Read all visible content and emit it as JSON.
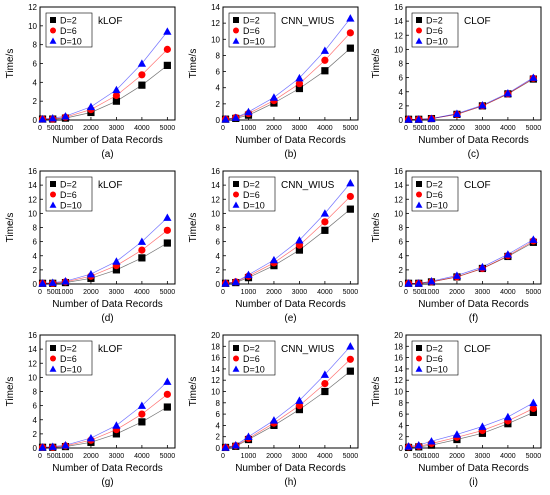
{
  "chart_data": [
    {
      "panel_label": "(a)",
      "type": "scatter",
      "title": "kLOF",
      "xlabel": "Number of Data Records",
      "ylabel": "Time/s",
      "xlim": [
        0,
        5300
      ],
      "ylim": [
        0,
        12
      ],
      "xticks": [
        0,
        500,
        1000,
        2000,
        3000,
        4000,
        5000
      ],
      "yticks": [
        0,
        2,
        4,
        6,
        8,
        10,
        12
      ],
      "x": [
        100,
        500,
        1000,
        2000,
        3000,
        4000,
        5000
      ],
      "legend_position": "top-left",
      "series": [
        {
          "name": "D=2",
          "color": "#000000",
          "marker": "square",
          "values": [
            0.1,
            0.1,
            0.2,
            0.8,
            2.0,
            3.7,
            5.8
          ]
        },
        {
          "name": "D=6",
          "color": "#ff0000",
          "marker": "circle",
          "values": [
            0.1,
            0.1,
            0.3,
            1.1,
            2.6,
            4.8,
            7.5
          ]
        },
        {
          "name": "D=10",
          "color": "#0000ff",
          "marker": "triangle",
          "values": [
            0.1,
            0.2,
            0.4,
            1.4,
            3.2,
            6.0,
            9.4
          ]
        }
      ]
    },
    {
      "panel_label": "(b)",
      "type": "scatter",
      "title": "CNN_WIUS",
      "xlabel": "Number of Data Records",
      "ylabel": "Time/s",
      "xlim": [
        0,
        5300
      ],
      "ylim": [
        0,
        14
      ],
      "xticks": [
        0,
        1000,
        2000,
        3000,
        4000,
        5000
      ],
      "yticks": [
        0,
        2,
        4,
        6,
        8,
        10,
        12,
        14
      ],
      "x": [
        100,
        500,
        1000,
        2000,
        3000,
        4000,
        5000
      ],
      "legend_position": "top-left",
      "series": [
        {
          "name": "D=2",
          "color": "#000000",
          "marker": "square",
          "values": [
            0.1,
            0.2,
            0.6,
            2.1,
            3.9,
            6.1,
            8.9
          ]
        },
        {
          "name": "D=6",
          "color": "#ff0000",
          "marker": "circle",
          "values": [
            0.1,
            0.3,
            0.8,
            2.4,
            4.5,
            7.4,
            10.8
          ]
        },
        {
          "name": "D=10",
          "color": "#0000ff",
          "marker": "triangle",
          "values": [
            0.1,
            0.3,
            1.0,
            2.8,
            5.2,
            8.6,
            12.6
          ]
        }
      ]
    },
    {
      "panel_label": "(c)",
      "type": "scatter",
      "title": "CLOF",
      "xlabel": "Number of Data Records",
      "ylabel": "Time/s",
      "xlim": [
        0,
        5300
      ],
      "ylim": [
        0,
        16
      ],
      "xticks": [
        0,
        500,
        1000,
        2000,
        3000,
        4000,
        5000
      ],
      "yticks": [
        0,
        2,
        4,
        6,
        8,
        10,
        12,
        14,
        16
      ],
      "x": [
        100,
        500,
        1000,
        2000,
        3000,
        4000,
        5000
      ],
      "legend_position": "top-left",
      "series": [
        {
          "name": "D=2",
          "color": "#000000",
          "marker": "square",
          "values": [
            0.1,
            0.1,
            0.2,
            0.8,
            2.0,
            3.7,
            5.8
          ]
        },
        {
          "name": "D=6",
          "color": "#ff0000",
          "marker": "circle",
          "values": [
            0.1,
            0.1,
            0.2,
            0.8,
            2.0,
            3.7,
            5.9
          ]
        },
        {
          "name": "D=10",
          "color": "#0000ff",
          "marker": "triangle",
          "values": [
            0.1,
            0.1,
            0.2,
            0.9,
            2.1,
            3.8,
            6.0
          ]
        }
      ]
    },
    {
      "panel_label": "(d)",
      "type": "scatter",
      "title": "kLOF",
      "xlabel": "Number of Data Records",
      "ylabel": "Time/s",
      "xlim": [
        0,
        5300
      ],
      "ylim": [
        0,
        16
      ],
      "xticks": [
        0,
        500,
        1000,
        2000,
        3000,
        4000,
        5000
      ],
      "yticks": [
        0,
        2,
        4,
        6,
        8,
        10,
        12,
        14,
        16
      ],
      "x": [
        100,
        500,
        1000,
        2000,
        3000,
        4000,
        5000
      ],
      "legend_position": "top-left",
      "series": [
        {
          "name": "D=2",
          "color": "#000000",
          "marker": "square",
          "values": [
            0.1,
            0.1,
            0.2,
            0.8,
            2.0,
            3.7,
            5.8
          ]
        },
        {
          "name": "D=6",
          "color": "#ff0000",
          "marker": "circle",
          "values": [
            0.1,
            0.1,
            0.3,
            1.1,
            2.6,
            4.8,
            7.6
          ]
        },
        {
          "name": "D=10",
          "color": "#0000ff",
          "marker": "triangle",
          "values": [
            0.1,
            0.2,
            0.4,
            1.4,
            3.2,
            6.0,
            9.4
          ]
        }
      ]
    },
    {
      "panel_label": "(e)",
      "type": "scatter",
      "title": "CNN_WIUS",
      "xlabel": "Number of Data Records",
      "ylabel": "Time/s",
      "xlim": [
        0,
        5300
      ],
      "ylim": [
        0,
        16
      ],
      "xticks": [
        0,
        1000,
        2000,
        3000,
        4000,
        5000
      ],
      "yticks": [
        0,
        2,
        4,
        6,
        8,
        10,
        12,
        14,
        16
      ],
      "x": [
        100,
        500,
        1000,
        2000,
        3000,
        4000,
        5000
      ],
      "legend_position": "top-left",
      "series": [
        {
          "name": "D=2",
          "color": "#000000",
          "marker": "square",
          "values": [
            0.1,
            0.2,
            0.9,
            2.6,
            4.8,
            7.6,
            10.6
          ]
        },
        {
          "name": "D=6",
          "color": "#ff0000",
          "marker": "circle",
          "values": [
            0.1,
            0.3,
            1.1,
            3.0,
            5.5,
            8.8,
            12.4
          ]
        },
        {
          "name": "D=10",
          "color": "#0000ff",
          "marker": "triangle",
          "values": [
            0.1,
            0.3,
            1.3,
            3.4,
            6.2,
            10.0,
            14.3
          ]
        }
      ]
    },
    {
      "panel_label": "(f)",
      "type": "scatter",
      "title": "CLOF",
      "xlabel": "Number of Data Records",
      "ylabel": "Time/s",
      "xlim": [
        0,
        5300
      ],
      "ylim": [
        0,
        16
      ],
      "xticks": [
        0,
        500,
        1000,
        2000,
        3000,
        4000,
        5000
      ],
      "yticks": [
        0,
        2,
        4,
        6,
        8,
        10,
        12,
        14,
        16
      ],
      "x": [
        100,
        500,
        1000,
        2000,
        3000,
        4000,
        5000
      ],
      "legend_position": "top-left",
      "series": [
        {
          "name": "D=2",
          "color": "#000000",
          "marker": "square",
          "values": [
            0.1,
            0.1,
            0.3,
            1.0,
            2.2,
            3.9,
            5.9
          ]
        },
        {
          "name": "D=6",
          "color": "#ff0000",
          "marker": "circle",
          "values": [
            0.1,
            0.1,
            0.3,
            1.0,
            2.2,
            4.0,
            6.1
          ]
        },
        {
          "name": "D=10",
          "color": "#0000ff",
          "marker": "triangle",
          "values": [
            0.1,
            0.1,
            0.4,
            1.2,
            2.4,
            4.2,
            6.3
          ]
        }
      ]
    },
    {
      "panel_label": "(g)",
      "type": "scatter",
      "title": "kLOF",
      "xlabel": "Number of Data Records",
      "ylabel": "Time/s",
      "xlim": [
        0,
        5300
      ],
      "ylim": [
        0,
        16
      ],
      "xticks": [
        0,
        500,
        1000,
        2000,
        3000,
        4000,
        5000
      ],
      "yticks": [
        0,
        2,
        4,
        6,
        8,
        10,
        12,
        14,
        16
      ],
      "x": [
        100,
        500,
        1000,
        2000,
        3000,
        4000,
        5000
      ],
      "legend_position": "top-left",
      "series": [
        {
          "name": "D=2",
          "color": "#000000",
          "marker": "square",
          "values": [
            0.1,
            0.1,
            0.2,
            0.8,
            2.0,
            3.7,
            5.8
          ]
        },
        {
          "name": "D=6",
          "color": "#ff0000",
          "marker": "circle",
          "values": [
            0.1,
            0.1,
            0.3,
            1.1,
            2.6,
            4.8,
            7.6
          ]
        },
        {
          "name": "D=10",
          "color": "#0000ff",
          "marker": "triangle",
          "values": [
            0.1,
            0.2,
            0.4,
            1.4,
            3.2,
            6.0,
            9.4
          ]
        }
      ]
    },
    {
      "panel_label": "(h)",
      "type": "scatter",
      "title": "CNN_WIUS",
      "xlabel": "Number of Data Records",
      "ylabel": "Time/s",
      "xlim": [
        0,
        5300
      ],
      "ylim": [
        0,
        20
      ],
      "xticks": [
        0,
        1000,
        2000,
        3000,
        4000,
        5000
      ],
      "yticks": [
        0,
        2,
        4,
        6,
        8,
        10,
        12,
        14,
        16,
        18,
        20
      ],
      "x": [
        100,
        500,
        1000,
        2000,
        3000,
        4000,
        5000
      ],
      "legend_position": "top-left",
      "series": [
        {
          "name": "D=2",
          "color": "#000000",
          "marker": "square",
          "values": [
            0.1,
            0.3,
            1.5,
            4.0,
            6.8,
            10.0,
            13.6
          ]
        },
        {
          "name": "D=6",
          "color": "#ff0000",
          "marker": "circle",
          "values": [
            0.1,
            0.4,
            1.7,
            4.4,
            7.5,
            11.4,
            15.7
          ]
        },
        {
          "name": "D=10",
          "color": "#0000ff",
          "marker": "triangle",
          "values": [
            0.1,
            0.5,
            2.0,
            4.9,
            8.4,
            13.0,
            18.0
          ]
        }
      ]
    },
    {
      "panel_label": "(i)",
      "type": "scatter",
      "title": "CLOF",
      "xlabel": "Number of Data Records",
      "ylabel": "Time/s",
      "xlim": [
        0,
        5300
      ],
      "ylim": [
        0,
        20
      ],
      "xticks": [
        0,
        500,
        1000,
        2000,
        3000,
        4000,
        5000
      ],
      "yticks": [
        0,
        2,
        4,
        6,
        8,
        10,
        12,
        14,
        16,
        18,
        20
      ],
      "x": [
        100,
        500,
        1000,
        2000,
        3000,
        4000,
        5000
      ],
      "legend_position": "top-left",
      "series": [
        {
          "name": "D=2",
          "color": "#000000",
          "marker": "square",
          "values": [
            0.1,
            0.2,
            0.5,
            1.5,
            2.6,
            4.3,
            6.3
          ]
        },
        {
          "name": "D=6",
          "color": "#ff0000",
          "marker": "circle",
          "values": [
            0.2,
            0.3,
            0.8,
            1.9,
            3.1,
            4.8,
            7.0
          ]
        },
        {
          "name": "D=10",
          "color": "#0000ff",
          "marker": "triangle",
          "values": [
            0.3,
            0.5,
            1.2,
            2.4,
            3.8,
            5.5,
            8.0
          ]
        }
      ]
    }
  ]
}
